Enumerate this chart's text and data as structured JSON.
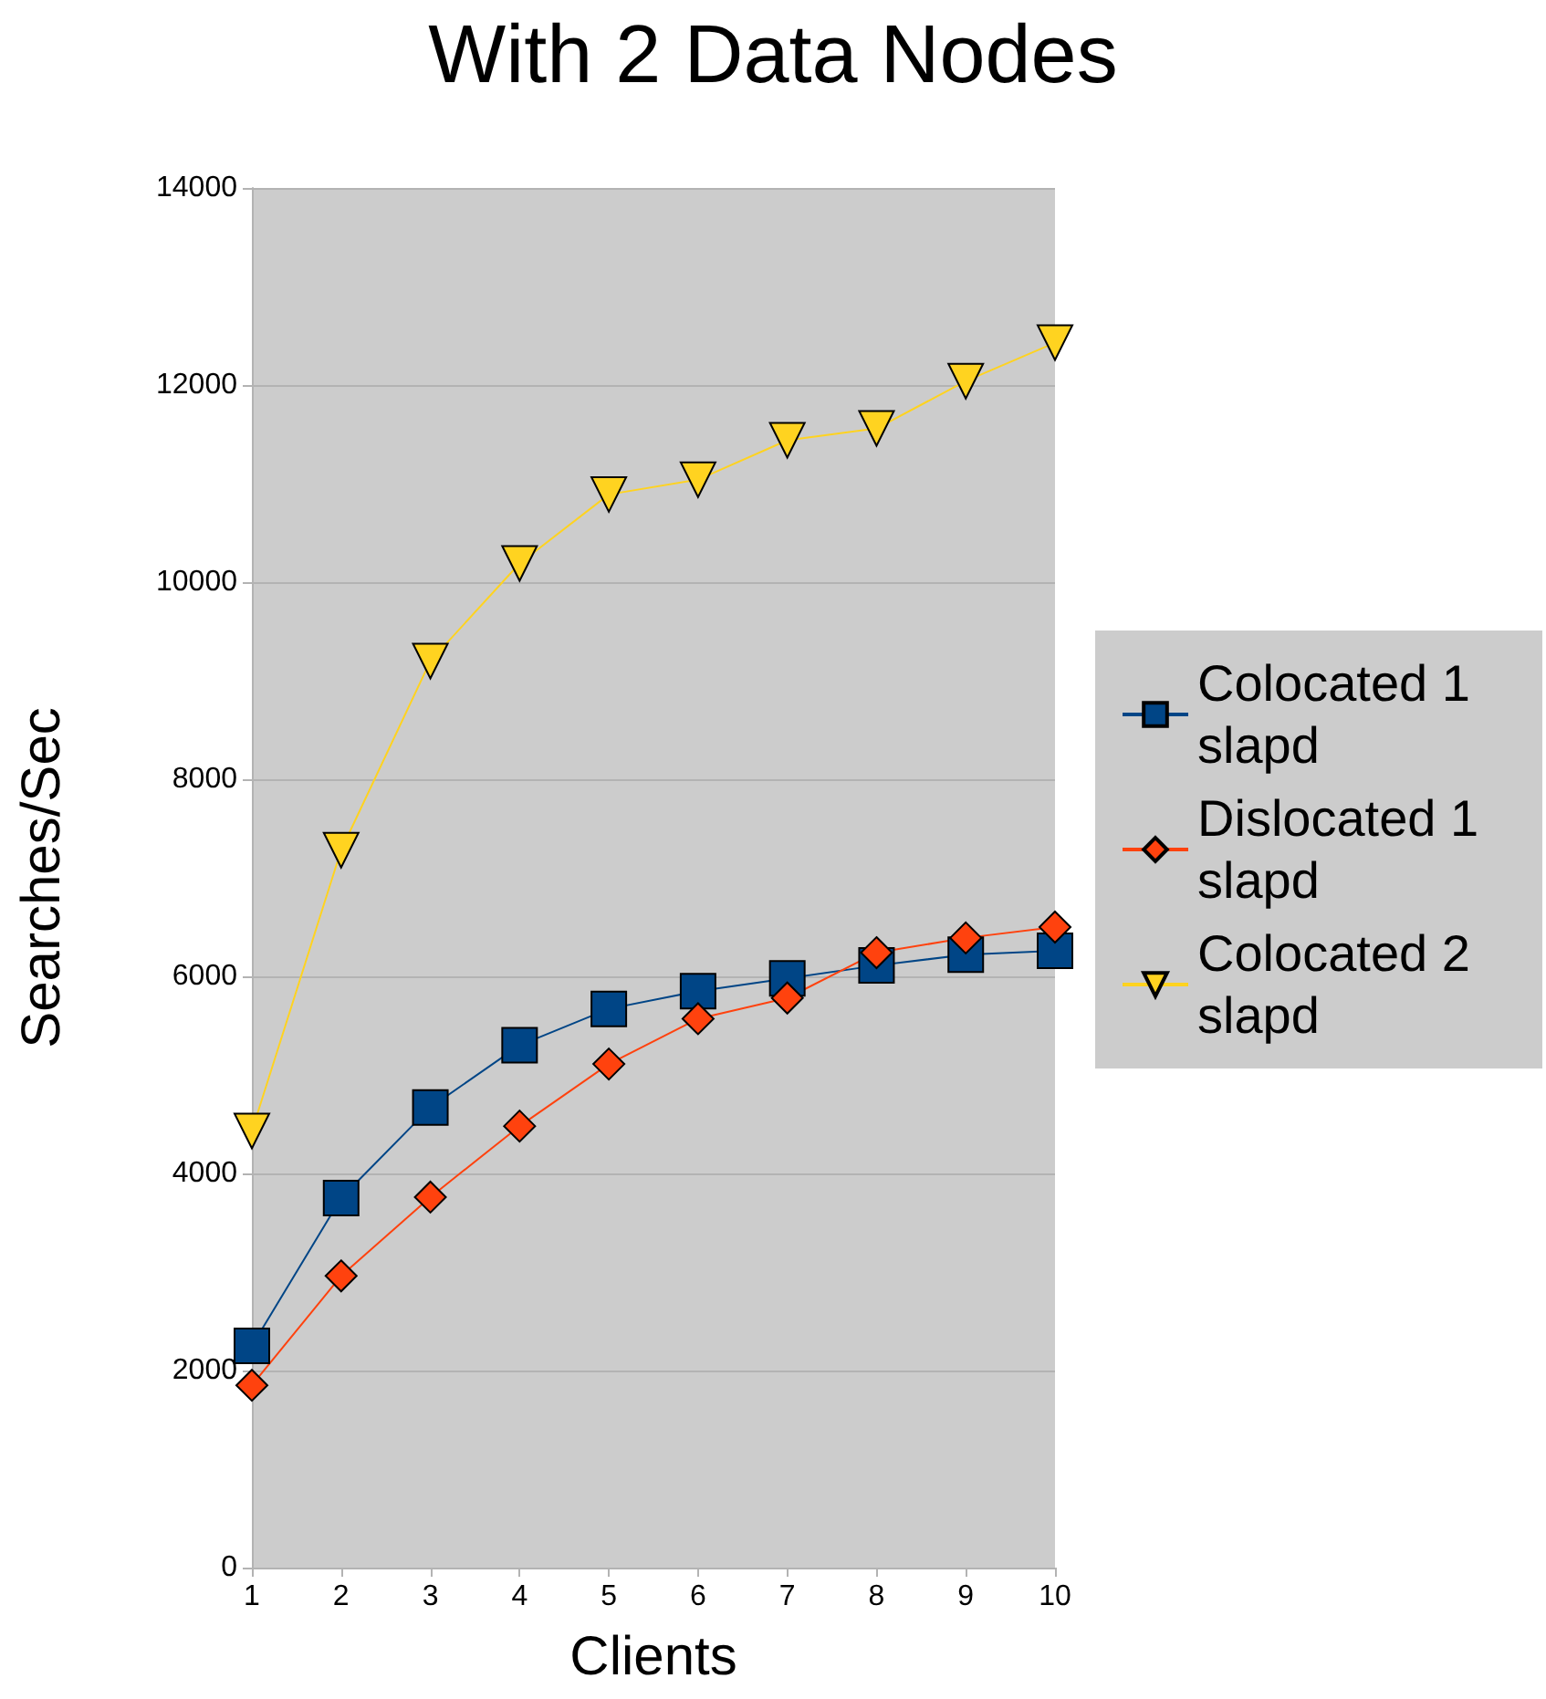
{
  "chart_data": {
    "type": "line",
    "title": "With 2 Data Nodes",
    "xlabel": "Clients",
    "ylabel": "Searches/Sec",
    "categories": [
      "1",
      "2",
      "3",
      "4",
      "5",
      "6",
      "7",
      "8",
      "9",
      "10"
    ],
    "series": [
      {
        "name": "Colocated 1 slapd",
        "color": "#004586",
        "marker": "square",
        "values": [
          2250,
          3750,
          4670,
          5300,
          5670,
          5850,
          5980,
          6110,
          6220,
          6260
        ]
      },
      {
        "name": "Dislocated 1 slapd",
        "color": "#ff420e",
        "marker": "diamond",
        "values": [
          1850,
          2960,
          3760,
          4480,
          5110,
          5570,
          5780,
          6240,
          6390,
          6500
        ]
      },
      {
        "name": "Colocated 2 slapd",
        "color": "#ffd320",
        "marker": "triangle",
        "values": [
          4430,
          7280,
          9200,
          10190,
          10890,
          11040,
          11440,
          11560,
          12040,
          12430
        ]
      }
    ],
    "ylim": [
      0,
      14000
    ],
    "yticks": [
      0,
      2000,
      4000,
      6000,
      8000,
      10000,
      12000,
      14000
    ],
    "grid": "y",
    "legend": "right",
    "line_style": "solid"
  }
}
